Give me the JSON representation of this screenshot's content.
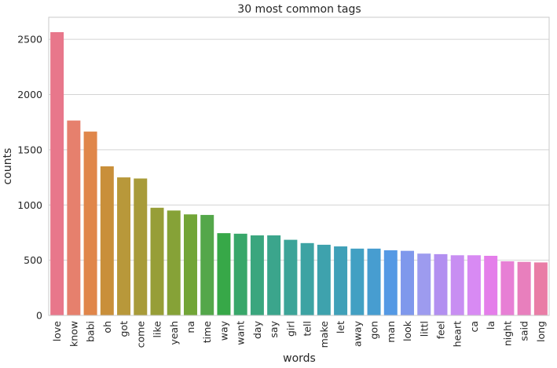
{
  "chart_data": {
    "type": "bar",
    "title": "30 most common tags",
    "xlabel": "words",
    "ylabel": "counts",
    "categories": [
      "love",
      "know",
      "babi",
      "oh",
      "got",
      "come",
      "like",
      "yeah",
      "na",
      "time",
      "way",
      "want",
      "day",
      "say",
      "girl",
      "tell",
      "make",
      "let",
      "away",
      "gon",
      "man",
      "look",
      "littl",
      "feel",
      "heart",
      "ca",
      "la",
      "night",
      "said",
      "long"
    ],
    "values": [
      2565,
      1765,
      1665,
      1350,
      1250,
      1240,
      975,
      950,
      915,
      910,
      745,
      740,
      725,
      725,
      685,
      655,
      640,
      625,
      605,
      605,
      590,
      585,
      560,
      555,
      545,
      545,
      540,
      490,
      485,
      480
    ],
    "colors": [
      "#e8778b",
      "#e6806d",
      "#e0864a",
      "#c98f3a",
      "#b8983a",
      "#a89b39",
      "#979e37",
      "#86a237",
      "#72a537",
      "#54a74a",
      "#37a848",
      "#38a76a",
      "#3aa67e",
      "#3ba58c",
      "#3ca498",
      "#3da3a3",
      "#3ea2ad",
      "#3fa0b8",
      "#42a0c3",
      "#479dd0",
      "#5499e4",
      "#7f98ec",
      "#9d9bef",
      "#b28ff0",
      "#c88ef2",
      "#d88af3",
      "#e47eea",
      "#e77fd5",
      "#e87fbd",
      "#e97da6"
    ],
    "yticks": [
      0,
      500,
      1000,
      1500,
      2000,
      2500
    ],
    "ylim": [
      0,
      2700
    ],
    "grid": true,
    "legend": "none"
  }
}
